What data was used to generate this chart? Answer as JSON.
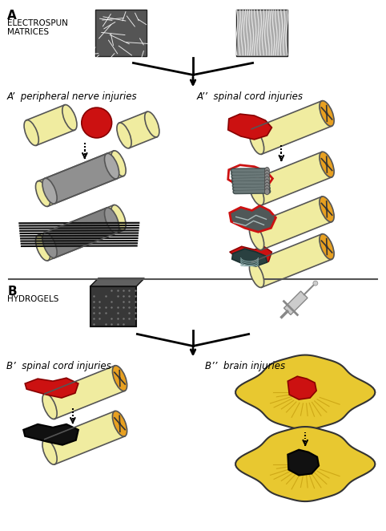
{
  "fig_width": 4.82,
  "fig_height": 6.62,
  "dpi": 100,
  "bg_color": "#ffffff",
  "tube_yellow": "#f0eca0",
  "tube_yellow_dark": "#d8d070",
  "tube_edge": "#555555",
  "red_lesion": "#cc1111",
  "black_hydrogel": "#111111",
  "orange_xsec": "#e8a020",
  "gray_scaffold": "#808080",
  "dark_gray": "#404848",
  "label_A": "A",
  "label_B": "B",
  "label_electrospun": "ELECTROSPUN\nMATRICES",
  "label_hydrogels": "HYDROGELS",
  "label_Ap": "A’  peripheral nerve injuries",
  "label_App": "A’’  spinal cord injuries",
  "label_Bp": "B’  spinal cord injuries",
  "label_Bpp": "B’’  brain injuries"
}
